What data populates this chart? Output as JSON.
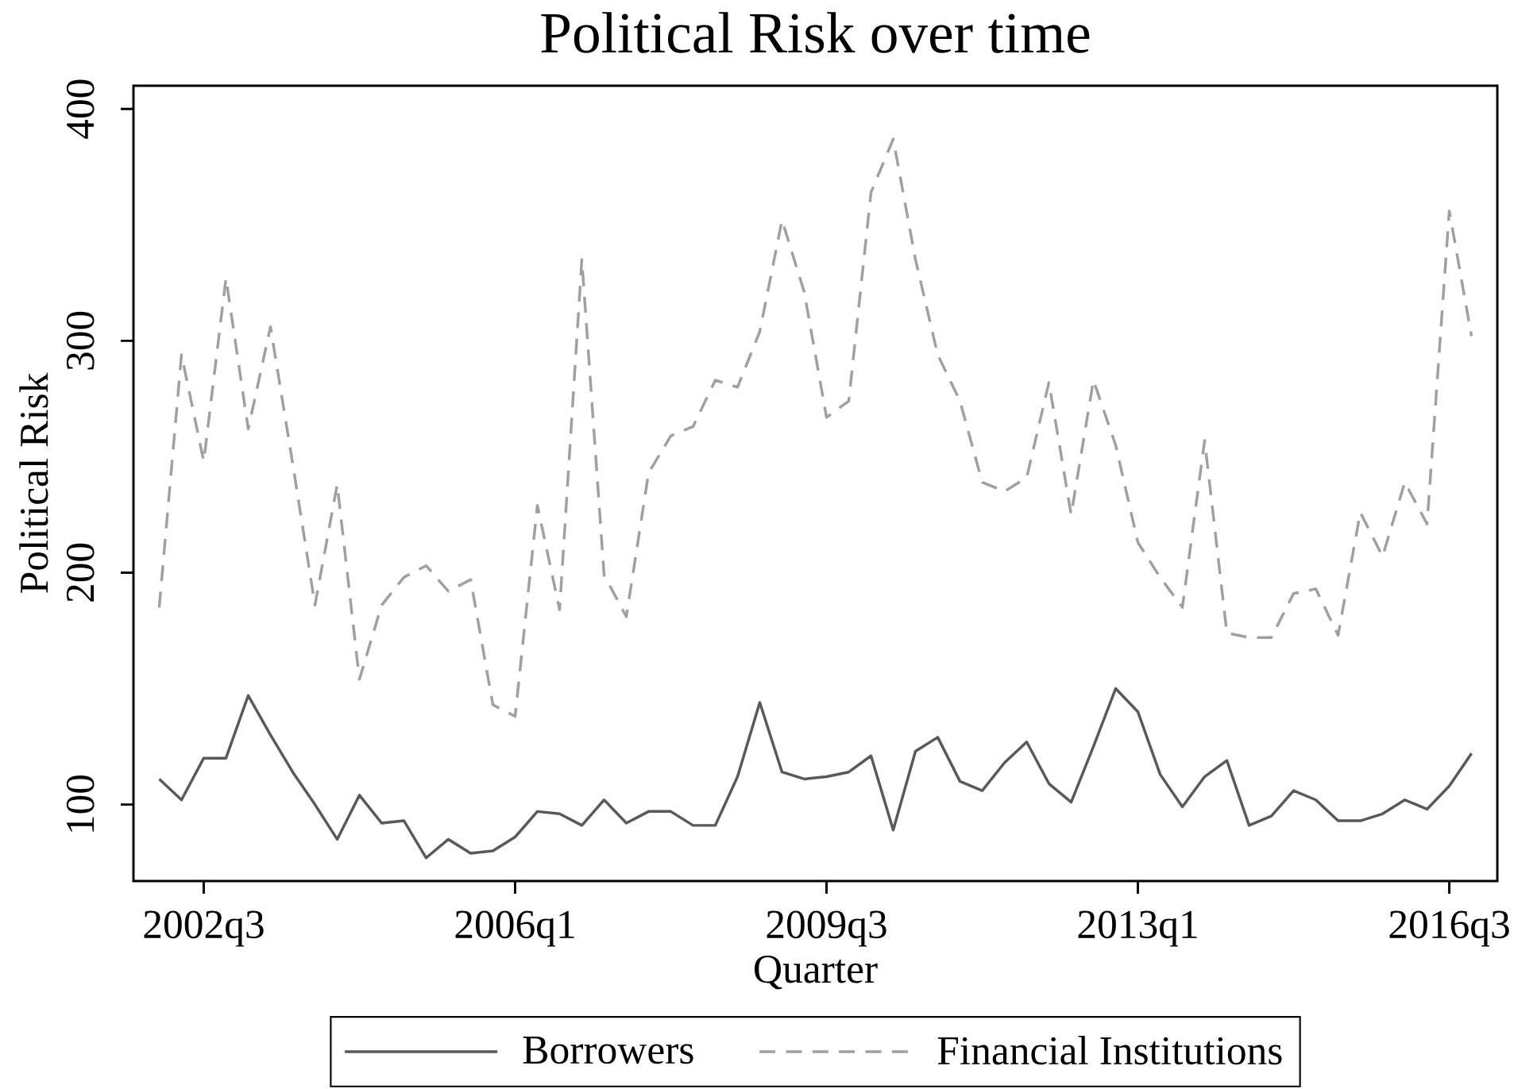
{
  "chart_data": {
    "type": "line",
    "title": "Political Risk over time",
    "xlabel": "Quarter",
    "ylabel": "Political Risk",
    "categories": [
      null,
      null,
      "2002q3",
      null,
      null,
      null,
      null,
      null,
      null,
      null,
      null,
      null,
      null,
      null,
      null,
      null,
      "2006q1",
      null,
      null,
      null,
      null,
      null,
      null,
      null,
      null,
      null,
      null,
      null,
      null,
      null,
      "2009q3",
      null,
      null,
      null,
      null,
      null,
      null,
      null,
      null,
      null,
      null,
      null,
      null,
      null,
      "2013q1",
      null,
      null,
      null,
      null,
      null,
      null,
      null,
      null,
      null,
      null,
      null,
      null,
      null,
      "2016q3",
      null
    ],
    "series": [
      {
        "name": "Borrowers",
        "color": "#595959",
        "line_style": "solid",
        "values": [
          111,
          102,
          120,
          120,
          147,
          130,
          114,
          100,
          85,
          104,
          92,
          93,
          77,
          85,
          79,
          80,
          86,
          97,
          96,
          91,
          102,
          92,
          97,
          97,
          91,
          91,
          112,
          144,
          114,
          111,
          112,
          114,
          121,
          89,
          123,
          129,
          110,
          106,
          118,
          127,
          109,
          101,
          125,
          150,
          140,
          113,
          99,
          112,
          119,
          91,
          95,
          106,
          102,
          93,
          93,
          96,
          102,
          98,
          108,
          122
        ]
      },
      {
        "name": "Financial Institutions",
        "color": "#a0a0a0",
        "line_style": "dashed",
        "values": [
          185,
          294,
          248,
          327,
          262,
          306,
          247,
          186,
          238,
          154,
          186,
          198,
          203,
          192,
          197,
          143,
          138,
          229,
          184,
          335,
          199,
          181,
          243,
          259,
          263,
          283,
          280,
          304,
          352,
          321,
          267,
          274,
          364,
          387,
          335,
          294,
          274,
          239,
          235,
          241,
          282,
          225,
          283,
          255,
          213,
          198,
          185,
          257,
          174,
          172,
          172,
          191,
          193,
          173,
          226,
          207,
          239,
          221,
          356,
          302
        ]
      }
    ],
    "ylim": [
      67,
      410
    ],
    "yticks": [
      100,
      200,
      300,
      400
    ],
    "legend": "bottom"
  }
}
